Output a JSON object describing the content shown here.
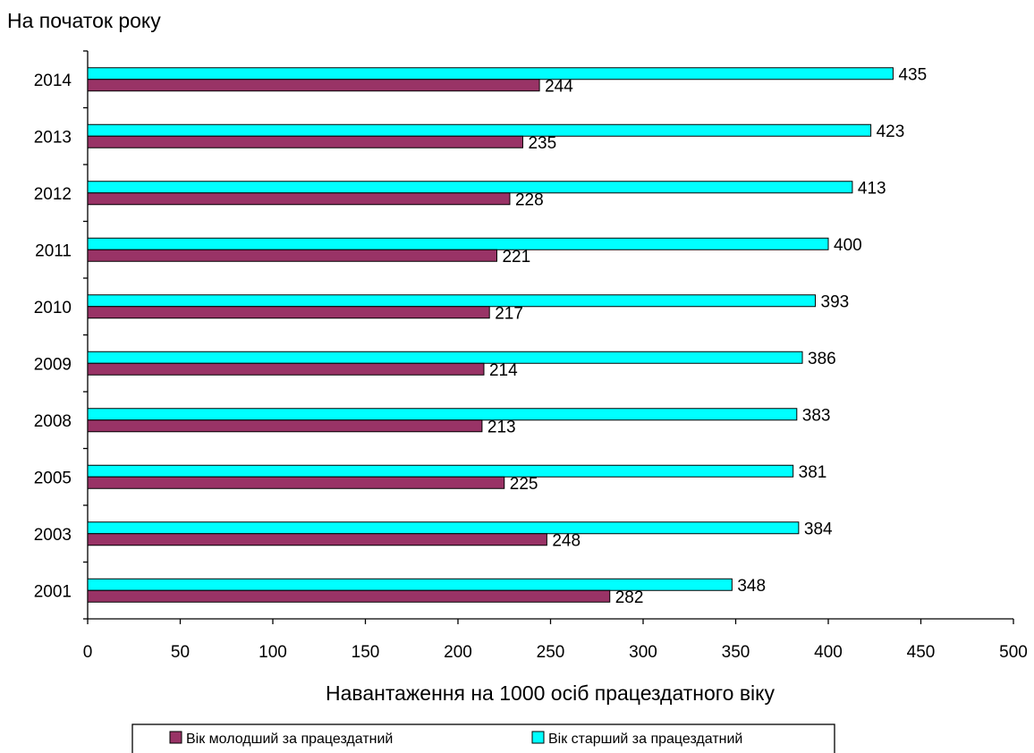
{
  "chart_data": {
    "type": "bar",
    "orientation": "horizontal",
    "ylabel": "На початок року",
    "xlabel": "Навантаження на 1000 осіб працездатного віку",
    "categories": [
      "2001",
      "2003",
      "2005",
      "2008",
      "2009",
      "2010",
      "2011",
      "2012",
      "2013",
      "2014"
    ],
    "series": [
      {
        "name": "Вік молодший за працездатний",
        "color": "#993366",
        "values": [
          282,
          248,
          225,
          213,
          214,
          217,
          221,
          228,
          235,
          244
        ]
      },
      {
        "name": "Вік старший за працездатний",
        "color": "#00ffff",
        "values": [
          348,
          384,
          381,
          383,
          386,
          393,
          400,
          413,
          423,
          435
        ]
      }
    ],
    "xlim": [
      0,
      500
    ],
    "xticks": [
      0,
      50,
      100,
      150,
      200,
      250,
      300,
      350,
      400,
      450,
      500
    ],
    "grid": false,
    "legend_position": "bottom"
  }
}
